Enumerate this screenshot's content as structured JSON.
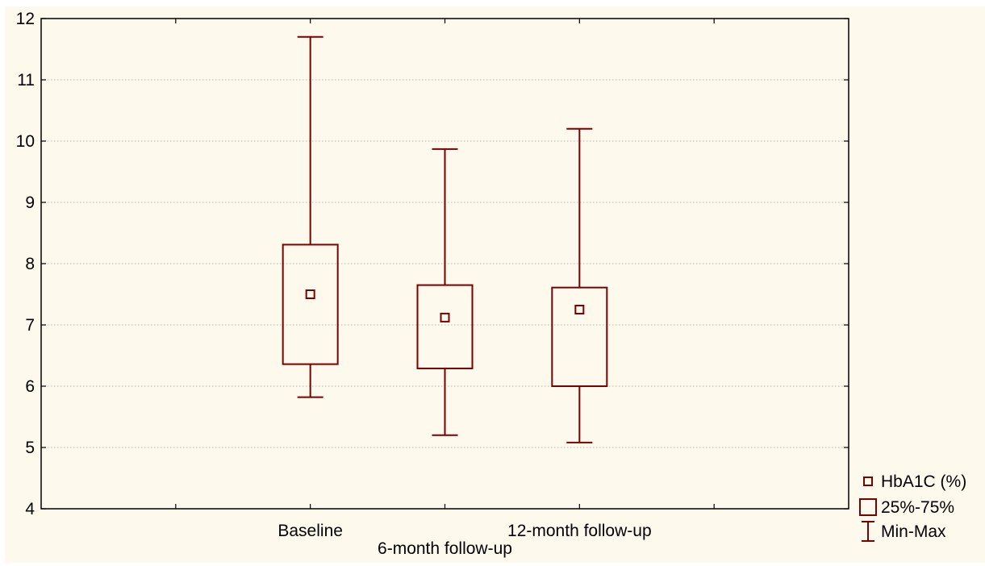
{
  "chart_data": {
    "type": "boxplot",
    "title": "",
    "xlabel": "",
    "ylabel": "",
    "ylim": [
      4,
      12
    ],
    "yticks": [
      4,
      5,
      6,
      7,
      8,
      9,
      10,
      11,
      12
    ],
    "grid": "horizontal dotted",
    "categories": [
      "Baseline",
      "6-month follow-up",
      "12-month follow-up"
    ],
    "series": [
      {
        "name": "HbA1C (%)",
        "statistic": "median",
        "values": [
          7.5,
          7.12,
          7.25
        ]
      },
      {
        "name": "25%-75%",
        "statistic": "interquartile range",
        "q1": [
          6.36,
          6.29,
          6.0
        ],
        "q3": [
          8.31,
          7.65,
          7.61
        ]
      },
      {
        "name": "Min-Max",
        "statistic": "range",
        "min": [
          5.82,
          5.2,
          5.08
        ],
        "max": [
          11.7,
          9.87,
          10.2
        ]
      }
    ],
    "legend_position": "right-bottom",
    "colors": {
      "box": "#7b0000",
      "background": "#fdf9ec",
      "grid": "#b8b8b8"
    }
  }
}
